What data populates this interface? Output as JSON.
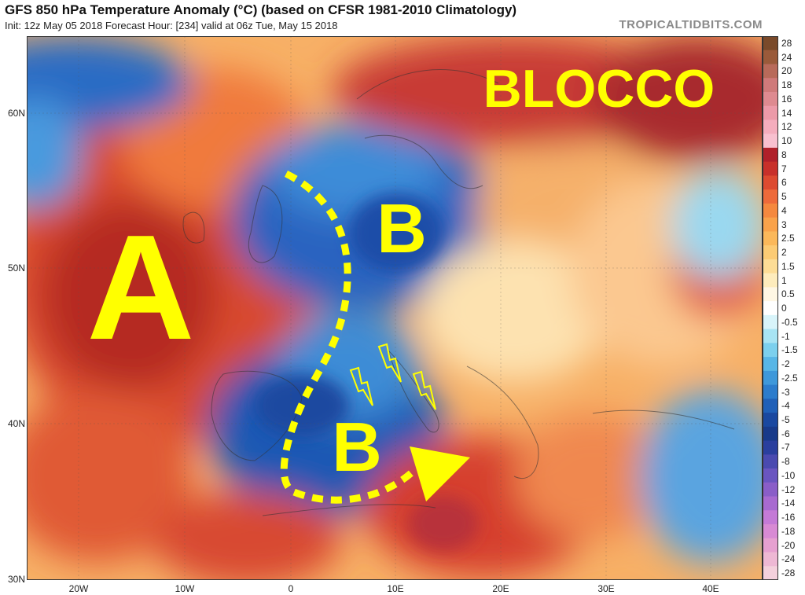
{
  "header": {
    "title": "GFS 850 hPa Temperature Anomaly (°C) (based on CFSR 1981-2010 Climatology)",
    "subtitle": "Init: 12z May 05 2018   Forecast Hour: [234]   valid at 06z Tue, May 15 2018",
    "brand": "TROPICALTIDBITS.COM"
  },
  "map": {
    "latitude_labels": [
      "60N",
      "50N",
      "40N",
      "30N"
    ],
    "longitude_labels": [
      "20W",
      "10W",
      "0",
      "10E",
      "20E",
      "30E",
      "40E"
    ],
    "annotations": {
      "blocking_label": "BLOCCO",
      "high_pressure": "A",
      "low_north": "B",
      "low_south": "B"
    },
    "annotation_color": "#ffff00"
  },
  "colorbar": {
    "labels": [
      "28",
      "24",
      "20",
      "18",
      "16",
      "14",
      "12",
      "10",
      "8",
      "7",
      "6",
      "5",
      "4",
      "3",
      "2.5",
      "2",
      "1.5",
      "1",
      "0.5",
      "0",
      "-0.5",
      "-1",
      "-1.5",
      "-2",
      "-2.5",
      "-3",
      "-4",
      "-5",
      "-6",
      "-7",
      "-8",
      "-10",
      "-12",
      "-14",
      "-16",
      "-18",
      "-20",
      "-24",
      "-28"
    ],
    "colors": [
      "#7a4a2a",
      "#9a5a3a",
      "#b86a5a",
      "#cf7a7a",
      "#de8a90",
      "#ec9aa8",
      "#f4adbd",
      "#f8c0cf",
      "#b0202a",
      "#c8302a",
      "#dd4a30",
      "#ee6a3a",
      "#f5883e",
      "#f9a24a",
      "#fbb85a",
      "#fccb74",
      "#fddd96",
      "#feecbc",
      "#fff7e4",
      "#ffffff",
      "#d8f4fa",
      "#a8e4f4",
      "#7cd0ee",
      "#58b6e6",
      "#3e98da",
      "#2c7ccc",
      "#2060b8",
      "#1a48a0",
      "#183a8a",
      "#2a3f9e",
      "#4a4ab0",
      "#6a55c0",
      "#8a5ec8",
      "#a86ad0",
      "#c47ad6",
      "#d88ad4",
      "#e6a0d0",
      "#eeb8d4",
      "#f4d0dc"
    ]
  }
}
